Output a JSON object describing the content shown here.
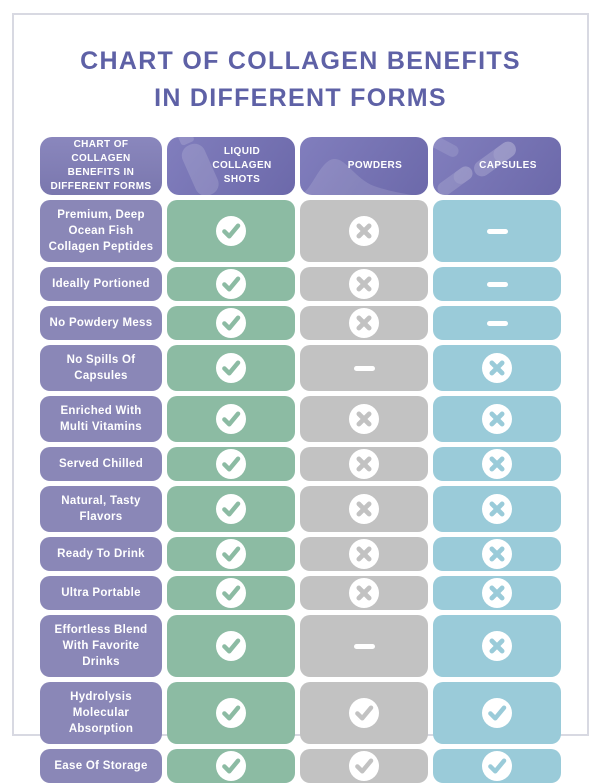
{
  "colors": {
    "title": "#5e61a6",
    "card_border": "#d8d9e2",
    "header_purple_light": "#817ebd",
    "header_purple_dark": "#6c69aa",
    "corner_purple_light": "#8a87bd",
    "corner_purple_dark": "#7a77ae",
    "row_label_purple": "#8a87b7",
    "liquid_green": "#8cbba3",
    "powder_gray": "#c2c2c2",
    "capsule_blue": "#9acbd9"
  },
  "title": {
    "line1": "CHART OF COLLAGEN BENEFITS",
    "line2": "IN DIFFERENT FORMS"
  },
  "table": {
    "corner_label": "CHART OF COLLAGEN BENEFITS IN DIFFERENT FORMS",
    "columns": [
      {
        "label": "LIQUID COLLAGEN SHOTS",
        "icon": "bottle-icon",
        "cell_color": "#8cbba3"
      },
      {
        "label": "POWDERS",
        "icon": "powder-pile-icon",
        "cell_color": "#c2c2c2"
      },
      {
        "label": "CAPSULES",
        "icon": "capsules-icon",
        "cell_color": "#9acbd9"
      }
    ],
    "rows": [
      {
        "label": "Premium, Deep Ocean Fish Collagen Peptides",
        "values": [
          "check",
          "cross",
          "dash"
        ]
      },
      {
        "label": "Ideally Portioned",
        "values": [
          "check",
          "cross",
          "dash"
        ]
      },
      {
        "label": "No Powdery Mess",
        "values": [
          "check",
          "cross",
          "dash"
        ]
      },
      {
        "label": "No Spills Of Capsules",
        "values": [
          "check",
          "dash",
          "cross"
        ]
      },
      {
        "label": "Enriched With Multi Vitamins",
        "values": [
          "check",
          "cross",
          "cross"
        ]
      },
      {
        "label": "Served Chilled",
        "values": [
          "check",
          "cross",
          "cross"
        ]
      },
      {
        "label": "Natural, Tasty Flavors",
        "values": [
          "check",
          "cross",
          "cross"
        ]
      },
      {
        "label": "Ready To Drink",
        "values": [
          "check",
          "cross",
          "cross"
        ]
      },
      {
        "label": "Ultra Portable",
        "values": [
          "check",
          "cross",
          "cross"
        ]
      },
      {
        "label": "Effortless Blend With Favorite Drinks",
        "values": [
          "check",
          "dash",
          "cross"
        ]
      },
      {
        "label": "Hydrolysis Molecular Absorption",
        "values": [
          "check",
          "check",
          "check"
        ]
      },
      {
        "label": "Ease Of Storage",
        "values": [
          "check",
          "check",
          "check"
        ]
      }
    ]
  },
  "chart_data": {
    "type": "table",
    "title": "Chart of Collagen Benefits in Different Forms",
    "columns": [
      "Liquid Collagen Shots",
      "Powders",
      "Capsules"
    ],
    "rows": [
      "Premium, Deep Ocean Fish Collagen Peptides",
      "Ideally Portioned",
      "No Powdery Mess",
      "No Spills Of Capsules",
      "Enriched With Multi Vitamins",
      "Served Chilled",
      "Natural, Tasty Flavors",
      "Ready To Drink",
      "Ultra Portable",
      "Effortless Blend With Favorite Drinks",
      "Hydrolysis Molecular Absorption",
      "Ease Of Storage"
    ],
    "values": [
      [
        "check",
        "cross",
        "dash"
      ],
      [
        "check",
        "cross",
        "dash"
      ],
      [
        "check",
        "cross",
        "dash"
      ],
      [
        "check",
        "dash",
        "cross"
      ],
      [
        "check",
        "cross",
        "cross"
      ],
      [
        "check",
        "cross",
        "cross"
      ],
      [
        "check",
        "cross",
        "cross"
      ],
      [
        "check",
        "cross",
        "cross"
      ],
      [
        "check",
        "cross",
        "cross"
      ],
      [
        "check",
        "dash",
        "cross"
      ],
      [
        "check",
        "check",
        "check"
      ],
      [
        "check",
        "check",
        "check"
      ]
    ],
    "symbols": {
      "check": "white circle with checkmark",
      "cross": "white circle with x",
      "dash": "white dash"
    }
  }
}
